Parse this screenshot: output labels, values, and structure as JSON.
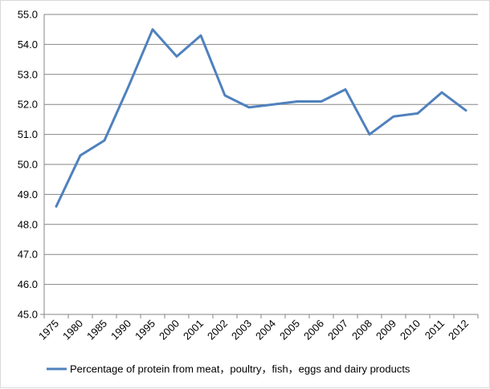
{
  "chart_data": {
    "type": "line",
    "title": "",
    "xlabel": "",
    "ylabel": "",
    "categories": [
      "1975",
      "1980",
      "1985",
      "1990",
      "1995",
      "2000",
      "2001",
      "2002",
      "2003",
      "2004",
      "2005",
      "2006",
      "2007",
      "2008",
      "2009",
      "2010",
      "2011",
      "2012"
    ],
    "series": [
      {
        "name": "Percentage of protein from meat，poultry，fish，eggs and dairy products",
        "color": "#4f81bd",
        "values": [
          48.6,
          50.3,
          50.8,
          52.6,
          54.5,
          53.6,
          54.3,
          52.3,
          51.9,
          52.0,
          52.1,
          52.1,
          52.5,
          51.0,
          51.6,
          51.7,
          52.4,
          51.8
        ]
      }
    ],
    "y_ticks": [
      "45.0",
      "46.0",
      "47.0",
      "48.0",
      "49.0",
      "50.0",
      "51.0",
      "52.0",
      "53.0",
      "54.0",
      "55.0"
    ],
    "ylim": [
      45.0,
      55.0
    ],
    "grid": true,
    "legend_position": "bottom"
  }
}
